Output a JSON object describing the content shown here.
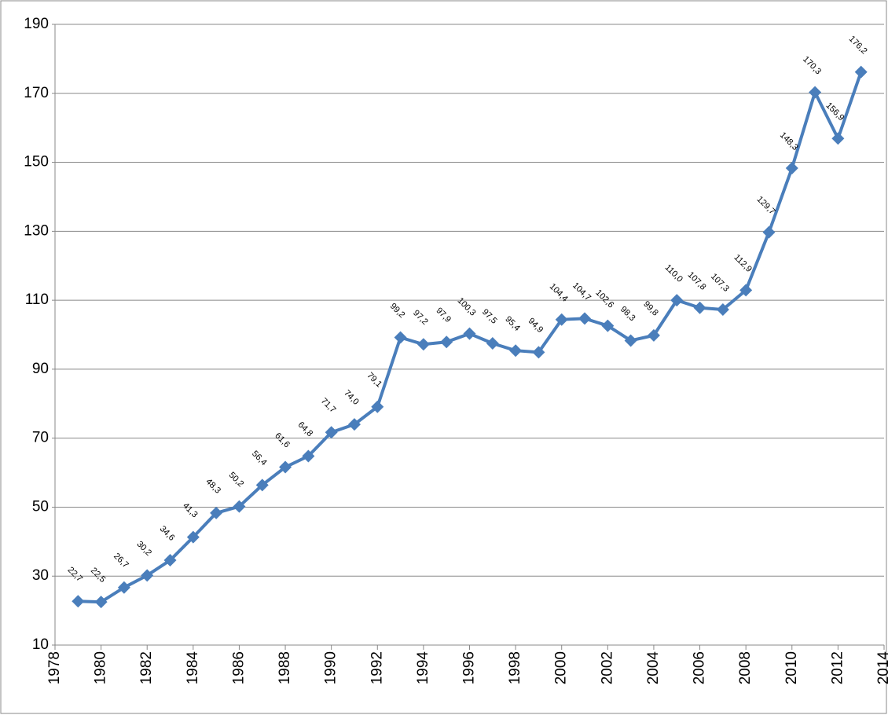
{
  "chart_data": {
    "type": "line",
    "x": [
      1979,
      1980,
      1981,
      1982,
      1983,
      1984,
      1985,
      1986,
      1987,
      1988,
      1989,
      1990,
      1991,
      1992,
      1993,
      1994,
      1995,
      1996,
      1997,
      1998,
      1999,
      2000,
      2001,
      2002,
      2003,
      2004,
      2005,
      2006,
      2007,
      2008,
      2009,
      2010,
      2011,
      2012,
      2013
    ],
    "series": [
      {
        "color": "#4a7ebb",
        "values": [
          22.7,
          22.5,
          26.7,
          30.2,
          34.6,
          41.3,
          48.3,
          50.2,
          56.4,
          61.6,
          64.8,
          71.7,
          74.0,
          79.1,
          99.2,
          97.2,
          97.9,
          100.3,
          97.5,
          95.4,
          94.9,
          104.4,
          104.7,
          102.6,
          98.3,
          99.8,
          110.0,
          107.8,
          107.3,
          112.9,
          129.7,
          148.3,
          170.3,
          156.9,
          176.2
        ],
        "value_labels": [
          "22,7",
          "22,5",
          "26,7",
          "30,2",
          "34,6",
          "41,3",
          "48,3",
          "50,2",
          "56,4",
          "61,6",
          "64,8",
          "71,7",
          "74,0",
          "79,1",
          "99,2",
          "97,2",
          "97,9",
          "100,3",
          "97,5",
          "95,4",
          "94,9",
          "104,4",
          "104,7",
          "102,6",
          "98,3",
          "99,8",
          "110,0",
          "107,8",
          "107,3",
          "112,9",
          "129,7",
          "148,3",
          "170,3",
          "156,9",
          "176,2"
        ]
      }
    ],
    "xlim": [
      1978,
      2014
    ],
    "xticks": [
      1978,
      1980,
      1982,
      1984,
      1986,
      1988,
      1990,
      1992,
      1994,
      1996,
      1998,
      2000,
      2002,
      2004,
      2006,
      2008,
      2010,
      2012,
      2014
    ],
    "ylim": [
      10,
      190
    ],
    "yticks": [
      10,
      30,
      50,
      70,
      90,
      110,
      130,
      150,
      170,
      190
    ],
    "grid": true
  }
}
